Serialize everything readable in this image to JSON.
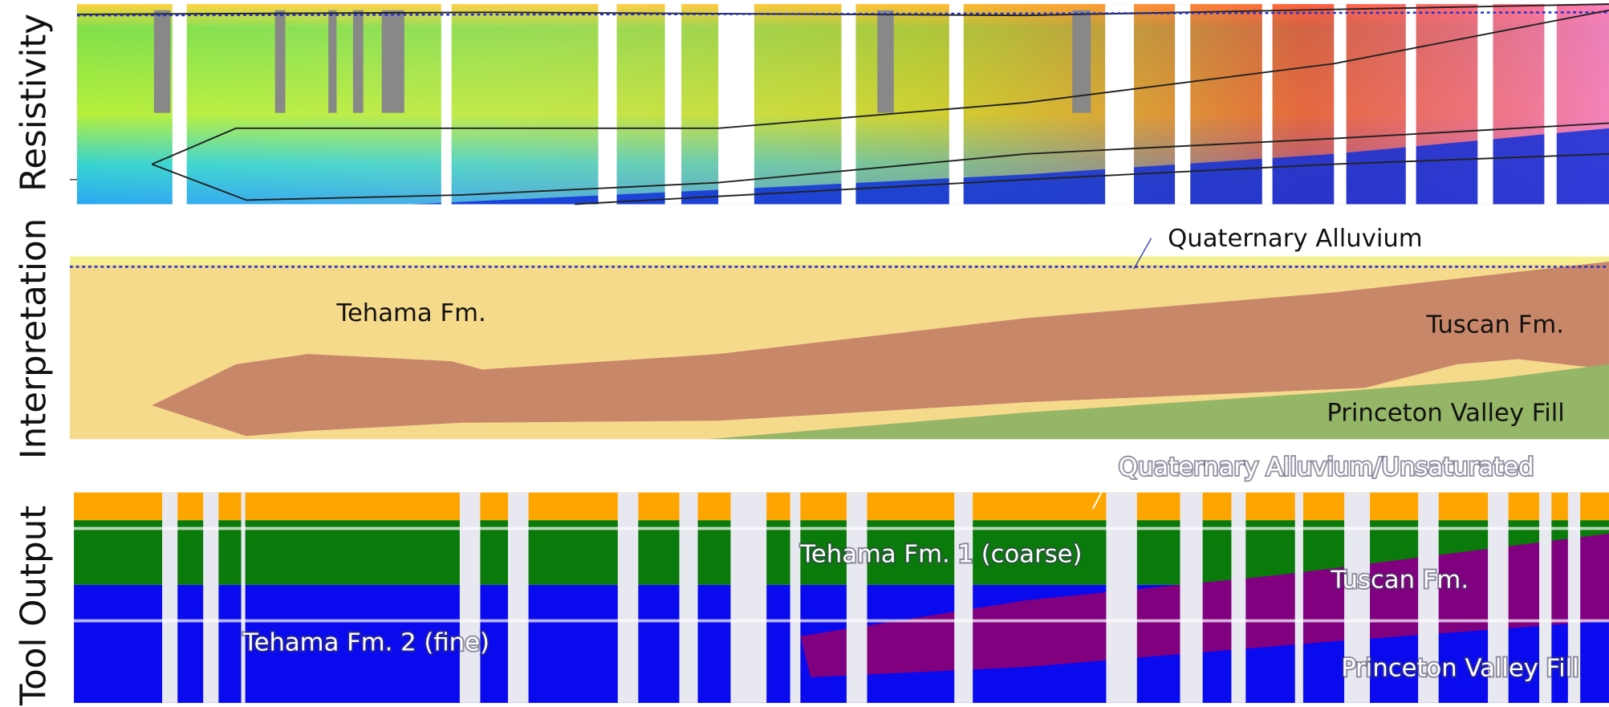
{
  "panels": [
    {
      "label": "Resistivity"
    },
    {
      "label": "Interpretation",
      "annotations": [
        "Quaternary Alluvium",
        "Tehama Fm.",
        "Tuscan Fm.",
        "Princeton Valley Fill"
      ]
    },
    {
      "label": "Tool Output",
      "annotations": [
        "Quaternary Alluvium/Unsaturated",
        "Tehama Fm. 1 (coarse)",
        "Tuscan Fm.",
        "Tehama Fm. 2 (fine)",
        "Princeton Valley Fill"
      ]
    }
  ]
}
